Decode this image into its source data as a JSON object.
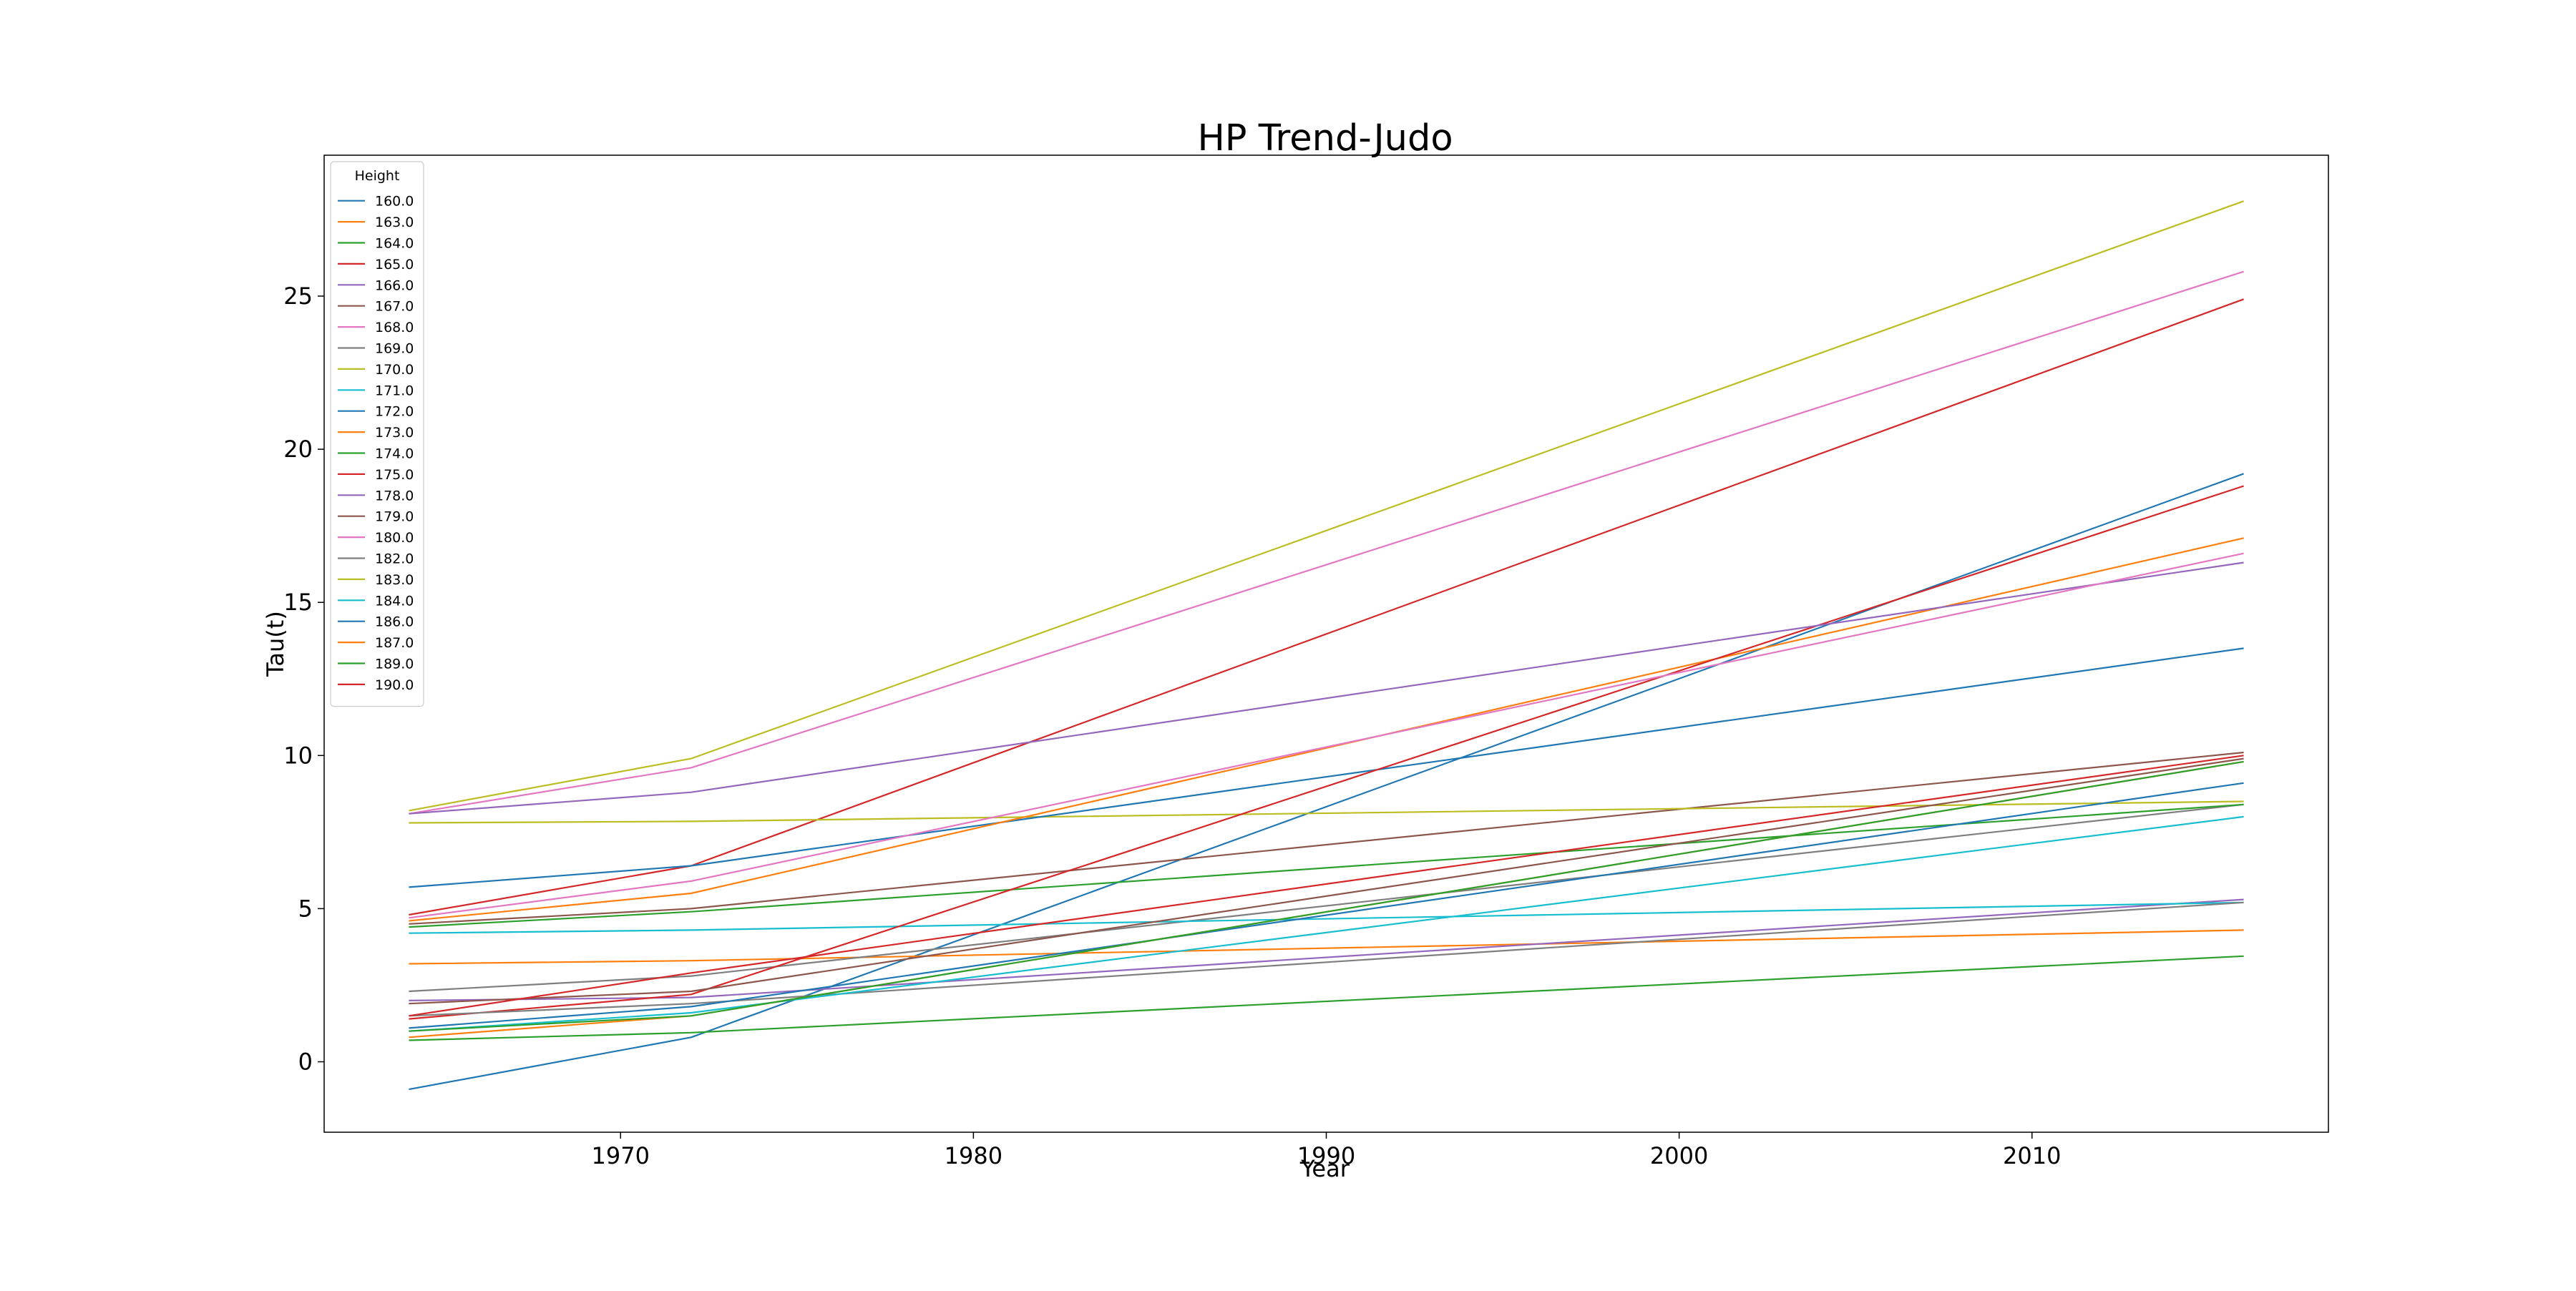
{
  "chart_data": {
    "type": "line",
    "title": "HP Trend-Judo",
    "xlabel": "Year",
    "ylabel": "Tau(t)",
    "xlim": [
      1961.6,
      2018.4
    ],
    "ylim": [
      -2.3,
      29.6
    ],
    "xticks": [
      1970,
      1980,
      1990,
      2000,
      2010
    ],
    "xtick_labels": [
      "1970",
      "1980",
      "1990",
      "2000",
      "2010"
    ],
    "yticks": [
      0,
      5,
      10,
      15,
      20,
      25
    ],
    "ytick_labels": [
      "0",
      "5",
      "10",
      "15",
      "20",
      "25"
    ],
    "grid": false,
    "legend": {
      "title": "Height",
      "placement": "top-left"
    },
    "x": [
      1964,
      1972,
      2016
    ],
    "series": [
      {
        "name": "160.0",
        "color": "#1f77b4",
        "values": [
          -0.9,
          0.8,
          19.2
        ]
      },
      {
        "name": "163.0",
        "color": "#ff7f0e",
        "values": [
          3.2,
          3.3,
          4.3
        ]
      },
      {
        "name": "164.0",
        "color": "#2ca02c",
        "values": [
          0.7,
          0.95,
          3.45
        ]
      },
      {
        "name": "165.0",
        "color": "#d62728",
        "values": [
          4.8,
          6.4,
          24.9
        ]
      },
      {
        "name": "166.0",
        "color": "#9467bd",
        "values": [
          2.0,
          2.1,
          5.3
        ]
      },
      {
        "name": "167.0",
        "color": "#8c564b",
        "values": [
          4.5,
          5.0,
          10.1
        ]
      },
      {
        "name": "168.0",
        "color": "#e377c2",
        "values": [
          8.1,
          9.6,
          25.8
        ]
      },
      {
        "name": "169.0",
        "color": "#7f7f7f",
        "values": [
          2.3,
          2.8,
          8.4
        ]
      },
      {
        "name": "170.0",
        "color": "#bcbd22",
        "values": [
          7.8,
          7.85,
          8.5
        ]
      },
      {
        "name": "171.0",
        "color": "#17becf",
        "values": [
          4.2,
          4.3,
          5.2
        ]
      },
      {
        "name": "172.0",
        "color": "#1f77b4",
        "values": [
          5.7,
          6.4,
          13.5
        ]
      },
      {
        "name": "173.0",
        "color": "#ff7f0e",
        "values": [
          4.6,
          5.5,
          17.1
        ]
      },
      {
        "name": "174.0",
        "color": "#2ca02c",
        "values": [
          4.4,
          4.9,
          8.4
        ]
      },
      {
        "name": "175.0",
        "color": "#d62728",
        "values": [
          1.4,
          2.2,
          18.8
        ]
      },
      {
        "name": "178.0",
        "color": "#9467bd",
        "values": [
          8.1,
          8.8,
          16.3
        ]
      },
      {
        "name": "179.0",
        "color": "#8c564b",
        "values": [
          1.9,
          2.3,
          9.9
        ]
      },
      {
        "name": "180.0",
        "color": "#e377c2",
        "values": [
          4.7,
          5.9,
          16.6
        ]
      },
      {
        "name": "182.0",
        "color": "#7f7f7f",
        "values": [
          1.5,
          1.9,
          5.2
        ]
      },
      {
        "name": "183.0",
        "color": "#bcbd22",
        "values": [
          8.2,
          9.9,
          28.1
        ]
      },
      {
        "name": "184.0",
        "color": "#17becf",
        "values": [
          1.0,
          1.6,
          8.0
        ]
      },
      {
        "name": "186.0",
        "color": "#1f77b4",
        "values": [
          1.1,
          1.8,
          9.1
        ]
      },
      {
        "name": "187.0",
        "color": "#ff7f0e",
        "values": [
          0.8,
          1.5,
          9.8
        ]
      },
      {
        "name": "189.0",
        "color": "#2ca02c",
        "values": [
          1.0,
          1.5,
          9.8
        ]
      },
      {
        "name": "190.0",
        "color": "#d62728",
        "values": [
          1.5,
          2.9,
          10.0
        ]
      }
    ]
  }
}
